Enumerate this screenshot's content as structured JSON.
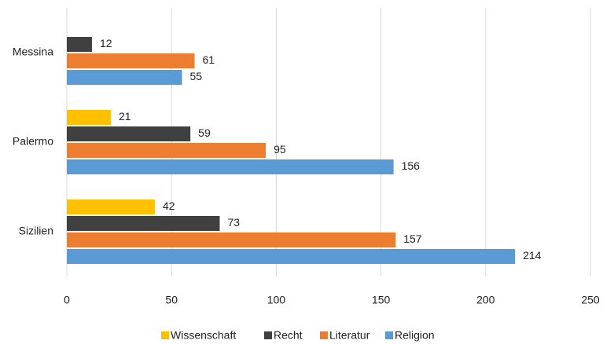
{
  "chart_data": {
    "type": "bar",
    "orientation": "horizontal",
    "categories": [
      "Messina",
      "Palermo",
      "Sizilien"
    ],
    "series": [
      {
        "name": "Wissenschaft",
        "color": "#ffc000",
        "values": [
          null,
          21,
          42
        ]
      },
      {
        "name": "Recht",
        "color": "#404040",
        "values": [
          12,
          59,
          73
        ]
      },
      {
        "name": "Literatur",
        "color": "#ed7d31",
        "values": [
          61,
          95,
          157
        ]
      },
      {
        "name": "Religion",
        "color": "#5b9bd5",
        "values": [
          55,
          156,
          214
        ]
      }
    ],
    "xlim": [
      0,
      250
    ],
    "xticks": [
      0,
      50,
      100,
      150,
      200,
      250
    ],
    "grid": true,
    "legend": "bottom"
  }
}
